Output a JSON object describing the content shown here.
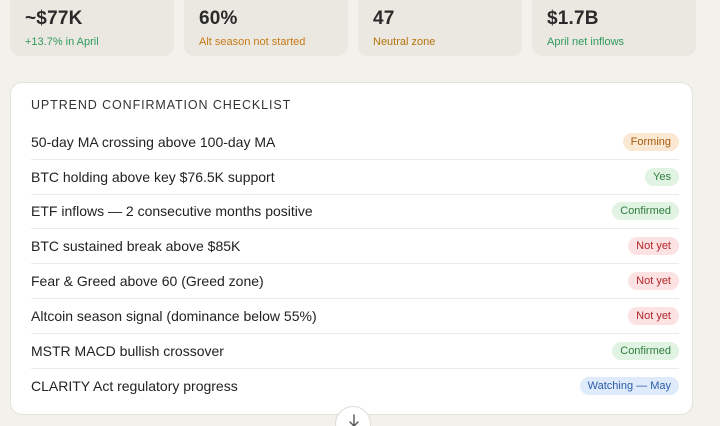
{
  "stats": [
    {
      "value": "~$77K",
      "sub": "+13.7% in April",
      "color": "#2e9a5c"
    },
    {
      "value": "60%",
      "sub": "Alt season not started",
      "color": "#c57a16"
    },
    {
      "value": "47",
      "sub": "Neutral zone",
      "color": "#b4740c"
    },
    {
      "value": "$1.7B",
      "sub": "April net inflows",
      "color": "#2e9a5c"
    }
  ],
  "checklist": {
    "title": "UPTREND CONFIRMATION CHECKLIST",
    "items": [
      {
        "label": "50-day MA crossing above 100-day MA",
        "status": "Forming",
        "bg": "#fbe8d2",
        "fg": "#a8580c"
      },
      {
        "label": "BTC holding above key $76.5K support",
        "status": "Yes",
        "bg": "#e1f3e3",
        "fg": "#2f7d3b"
      },
      {
        "label": "ETF inflows — 2 consecutive months positive",
        "status": "Confirmed",
        "bg": "#e1f3e3",
        "fg": "#2f7d3b"
      },
      {
        "label": "BTC sustained break above $85K",
        "status": "Not yet",
        "bg": "#fce2e2",
        "fg": "#b3262a"
      },
      {
        "label": "Fear & Greed above 60 (Greed zone)",
        "status": "Not yet",
        "bg": "#fce2e2",
        "fg": "#b3262a"
      },
      {
        "label": "Altcoin season signal (dominance below 55%)",
        "status": "Not yet",
        "bg": "#fce2e2",
        "fg": "#b3262a"
      },
      {
        "label": "MSTR MACD bullish crossover",
        "status": "Confirmed",
        "bg": "#e1f3e3",
        "fg": "#2f7d3b"
      },
      {
        "label": "CLARITY Act regulatory progress",
        "status": "Watching — May",
        "bg": "#dfeafa",
        "fg": "#2b5ea8"
      }
    ]
  },
  "scroll_button": {
    "icon": "arrow-down-icon"
  }
}
